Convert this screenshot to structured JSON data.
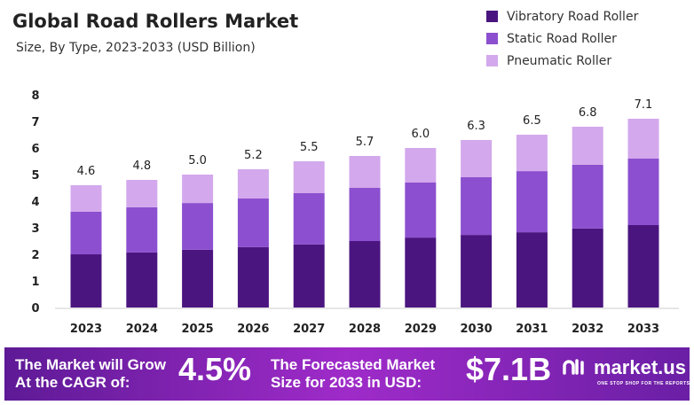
{
  "chart_data": {
    "type": "bar",
    "stacked": true,
    "title": "Global Road Rollers Market",
    "subtitle": "Size, By Type, 2023-2033 (USD Billion)",
    "categories": [
      "2023",
      "2024",
      "2025",
      "2026",
      "2027",
      "2028",
      "2029",
      "2030",
      "2031",
      "2032",
      "2033"
    ],
    "series": [
      {
        "name": "Vibratory Road Roller",
        "color": "#4b1580",
        "values": [
          2.0,
          2.07,
          2.17,
          2.27,
          2.37,
          2.5,
          2.63,
          2.73,
          2.83,
          2.97,
          3.1
        ]
      },
      {
        "name": "Static Road Roller",
        "color": "#8c4fcf",
        "values": [
          1.6,
          1.7,
          1.76,
          1.83,
          1.93,
          2.0,
          2.07,
          2.17,
          2.3,
          2.4,
          2.5
        ]
      },
      {
        "name": "Pneumatic Roller",
        "color": "#d3a8ec",
        "values": [
          1.0,
          1.03,
          1.07,
          1.1,
          1.2,
          1.2,
          1.3,
          1.4,
          1.37,
          1.43,
          1.5
        ]
      }
    ],
    "totals": [
      "4.6",
      "4.8",
      "5.0",
      "5.2",
      "5.5",
      "5.7",
      "6.0",
      "6.3",
      "6.5",
      "6.8",
      "7.1"
    ],
    "yticks": [
      "0",
      "1",
      "2",
      "3",
      "4",
      "5",
      "6",
      "7",
      "8"
    ],
    "ylim": [
      0,
      8
    ],
    "grid": false,
    "legend": "top-right"
  },
  "footer": {
    "cagr_label_1": "The Market will Grow",
    "cagr_label_2": "At the CAGR of:",
    "cagr_value": "4.5%",
    "forecast_label_1": "The Forecasted Market",
    "forecast_label_2": "Size for 2033 in USD:",
    "forecast_value": "$7.1B",
    "logo": "market.us",
    "logo_tagline": "ONE STOP SHOP FOR THE REPORTS"
  }
}
